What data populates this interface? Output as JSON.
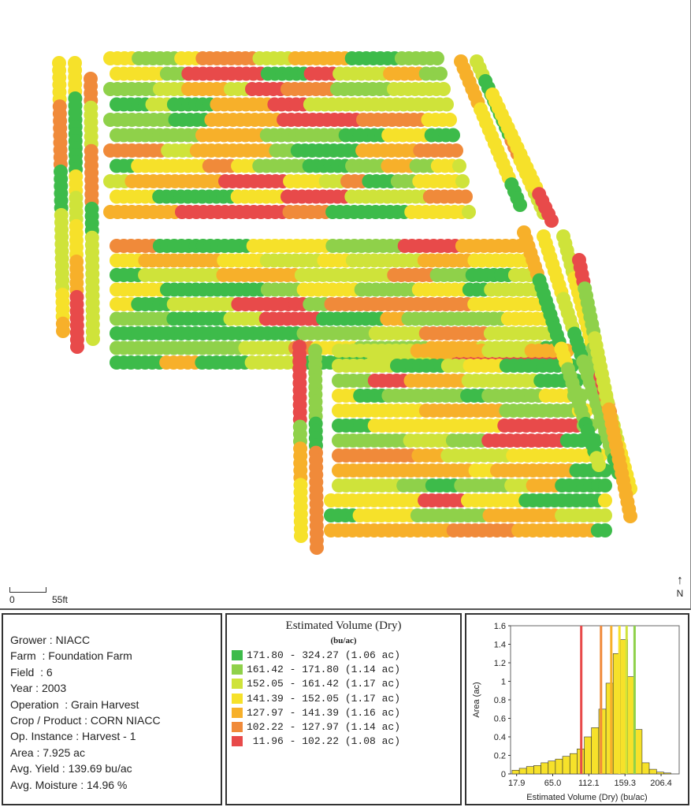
{
  "map": {
    "scale_zero": "0",
    "scale_label": "55ft",
    "north_label": "N"
  },
  "info": {
    "lines": [
      "Grower : NIACC",
      "Farm  : Foundation Farm",
      "Field  : 6",
      "Year : 2003",
      "Operation  : Grain Harvest",
      "Crop / Product : CORN NIACC",
      "Op. Instance : Harvest - 1",
      "Area : 7.925 ac",
      "Avg. Yield : 139.69 bu/ac",
      "Avg. Moisture : 14.96 %"
    ]
  },
  "legend": {
    "title": "Estimated Volume (Dry)",
    "unit": "(bu/ac)",
    "items": [
      {
        "range": "171.80 - 324.27",
        "area": "(1.06 ac)",
        "color": "#3dbb4a"
      },
      {
        "range": "161.42 - 171.80",
        "area": "(1.14 ac)",
        "color": "#8fd14a"
      },
      {
        "range": "152.05 - 161.42",
        "area": "(1.17 ac)",
        "color": "#cfe33a"
      },
      {
        "range": "141.39 - 152.05",
        "area": "(1.17 ac)",
        "color": "#f6e12a"
      },
      {
        "range": "127.97 - 141.39",
        "area": "(1.16 ac)",
        "color": "#f7b02a"
      },
      {
        "range": "102.22 - 127.97",
        "area": "(1.14 ac)",
        "color": "#f08a3a"
      },
      {
        "range": " 11.96 - 102.22",
        "area": "(1.08 ac)",
        "color": "#e84a4a"
      }
    ]
  },
  "chart_data": {
    "type": "bar",
    "xlabel": "Estimated Volume (Dry) (bu/ac)",
    "ylabel": "Area (ac)",
    "ylim": [
      0,
      1.6
    ],
    "xlim": [
      10,
      230
    ],
    "x_ticks": [
      "17.9",
      "65.0",
      "112.1",
      "159.3",
      "206.4"
    ],
    "x_tick_values": [
      17.9,
      65.0,
      112.1,
      159.3,
      206.4
    ],
    "y_ticks": [
      "0",
      "0.2",
      "0.4",
      "0.6",
      "0.8",
      "1",
      "1.2",
      "1.4",
      "1.6"
    ],
    "y_tick_values": [
      0,
      0.2,
      0.4,
      0.6,
      0.8,
      1.0,
      1.2,
      1.4,
      1.6
    ],
    "bins": [
      {
        "x0": 11.96,
        "x1": 21.4,
        "value": 0.04
      },
      {
        "x0": 21.4,
        "x1": 30.8,
        "value": 0.06
      },
      {
        "x0": 30.8,
        "x1": 40.2,
        "value": 0.08
      },
      {
        "x0": 40.2,
        "x1": 49.7,
        "value": 0.09
      },
      {
        "x0": 49.7,
        "x1": 59.1,
        "value": 0.12
      },
      {
        "x0": 59.1,
        "x1": 68.5,
        "value": 0.14
      },
      {
        "x0": 68.5,
        "x1": 77.9,
        "value": 0.16
      },
      {
        "x0": 77.9,
        "x1": 87.4,
        "value": 0.19
      },
      {
        "x0": 87.4,
        "x1": 96.8,
        "value": 0.22
      },
      {
        "x0": 96.8,
        "x1": 106.2,
        "value": 0.27
      },
      {
        "x0": 106.2,
        "x1": 115.6,
        "value": 0.4
      },
      {
        "x0": 115.6,
        "x1": 125.1,
        "value": 0.5
      },
      {
        "x0": 125.1,
        "x1": 134.5,
        "value": 0.7
      },
      {
        "x0": 134.5,
        "x1": 143.9,
        "value": 0.98
      },
      {
        "x0": 143.9,
        "x1": 153.3,
        "value": 1.3
      },
      {
        "x0": 153.3,
        "x1": 162.8,
        "value": 1.45
      },
      {
        "x0": 162.8,
        "x1": 172.2,
        "value": 1.05
      },
      {
        "x0": 172.2,
        "x1": 181.6,
        "value": 0.48
      },
      {
        "x0": 181.6,
        "x1": 191.0,
        "value": 0.12
      },
      {
        "x0": 191.0,
        "x1": 200.5,
        "value": 0.05
      },
      {
        "x0": 200.5,
        "x1": 209.9,
        "value": 0.02
      },
      {
        "x0": 209.9,
        "x1": 219.3,
        "value": 0.01
      }
    ],
    "break_lines": [
      {
        "x": 102.22,
        "color": "#e84a4a"
      },
      {
        "x": 127.97,
        "color": "#f08a3a"
      },
      {
        "x": 141.39,
        "color": "#f7b02a"
      },
      {
        "x": 152.05,
        "color": "#f6e12a"
      },
      {
        "x": 161.42,
        "color": "#cfe33a"
      },
      {
        "x": 171.8,
        "color": "#8fd14a"
      }
    ]
  }
}
